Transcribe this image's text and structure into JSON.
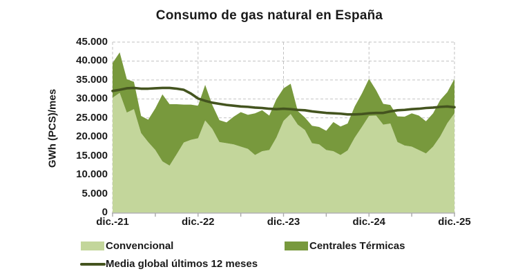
{
  "chart_data": {
    "type": "area",
    "stacked": true,
    "title": "Consumo de gas natural en España",
    "ylabel": "GWh (PCS)/mes",
    "ylim": [
      0,
      45000
    ],
    "y_tick_step": 5000,
    "y_tick_labels": [
      "0",
      "5.000",
      "10.000",
      "15.000",
      "20.000",
      "25.000",
      "30.000",
      "35.000",
      "40.000",
      "45.000"
    ],
    "x_tick_labels": [
      "dic.-21",
      "dic.-22",
      "dic.-23",
      "dic.-24",
      "dic.-25"
    ],
    "points_per_tick": 12,
    "x_minor_tick_every_months": 6,
    "n_points": 49,
    "grid": "dashed",
    "legend_position": "bottom",
    "series": [
      {
        "name": "Convencional",
        "type": "area",
        "color": "#c3d69b",
        "values": [
          30300,
          31600,
          26400,
          27300,
          21000,
          18600,
          16500,
          13500,
          12400,
          15400,
          18500,
          19200,
          19600,
          24300,
          22100,
          18600,
          18300,
          18000,
          17400,
          16800,
          15200,
          16200,
          16500,
          19800,
          24200,
          26000,
          23200,
          21800,
          18300,
          18000,
          16500,
          16200,
          15200,
          16400,
          19800,
          22600,
          25500,
          25600,
          23200,
          23500,
          18600,
          17700,
          17400,
          16500,
          15600,
          17400,
          20100,
          23600,
          26200
        ]
      },
      {
        "name": "Centrales Térmicas",
        "type": "area",
        "color": "#78993d",
        "values": [
          9200,
          10700,
          8800,
          7200,
          4500,
          5900,
          11000,
          17700,
          16200,
          13200,
          10000,
          9300,
          8600,
          9400,
          6300,
          5800,
          5500,
          7300,
          9100,
          9000,
          11000,
          10800,
          9100,
          10100,
          8600,
          8000,
          3600,
          3300,
          4600,
          4600,
          5100,
          7700,
          7500,
          7100,
          8200,
          8800,
          9800,
          6700,
          5500,
          4900,
          6800,
          7600,
          8800,
          9100,
          8500,
          8800,
          9600,
          8200,
          9100
        ]
      },
      {
        "name": "Media global últimos 12 meses",
        "type": "line",
        "color": "#44541f",
        "values": [
          32100,
          32400,
          32800,
          32900,
          32700,
          32700,
          32800,
          32900,
          32900,
          32700,
          32400,
          31400,
          30100,
          29500,
          29000,
          28700,
          28400,
          28200,
          28000,
          27900,
          27700,
          27600,
          27400,
          27300,
          27400,
          27300,
          27100,
          27000,
          26700,
          26500,
          26300,
          26200,
          26100,
          25900,
          25900,
          26000,
          26200,
          26300,
          26300,
          26700,
          27000,
          27100,
          27300,
          27400,
          27600,
          27700,
          27900,
          28000,
          27800
        ]
      }
    ]
  }
}
